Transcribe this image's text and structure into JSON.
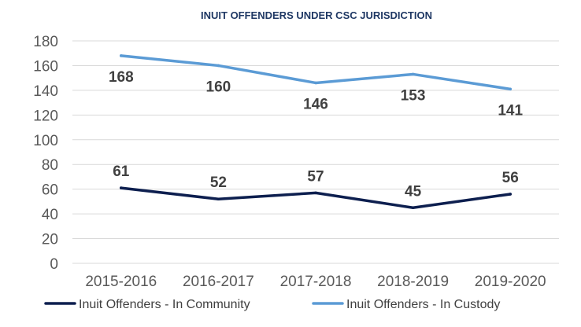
{
  "chart_data": {
    "type": "line",
    "title": "INUIT OFFENDERS UNDER CSC JURISDICTION",
    "categories": [
      "2015-2016",
      "2016-2017",
      "2017-2018",
      "2018-2019",
      "2019-2020"
    ],
    "ylim": [
      0,
      180
    ],
    "yticks": [
      0,
      20,
      40,
      60,
      80,
      100,
      120,
      140,
      160,
      180
    ],
    "grid": true,
    "legend_position": "bottom",
    "series": [
      {
        "name": "Inuit Offenders - In Community",
        "values": [
          61,
          52,
          57,
          45,
          56
        ],
        "color": "#0d1f4f",
        "label_position": "above"
      },
      {
        "name": "Inuit Offenders - In Custody",
        "values": [
          168,
          160,
          146,
          153,
          141
        ],
        "color": "#5b9bd5",
        "label_position": "below"
      }
    ]
  }
}
